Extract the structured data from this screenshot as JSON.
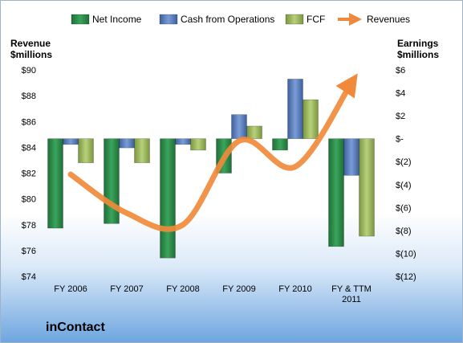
{
  "company": "inContact",
  "chart_data": {
    "type": "bar",
    "categories": [
      "FY 2006",
      "FY 2007",
      "FY 2008",
      "FY 2009",
      "FY 2010",
      "FY & TTM 2011"
    ],
    "left_axis": {
      "title_line1": "Revenue",
      "title_line2": "$millions",
      "ylim": [
        74,
        90
      ],
      "ticks": [
        74,
        76,
        78,
        80,
        82,
        84,
        86,
        88,
        90
      ],
      "tick_labels": [
        "$74",
        "$76",
        "$78",
        "$80",
        "$82",
        "$84",
        "$86",
        "$88",
        "$90"
      ]
    },
    "right_axis": {
      "title_line1": "Earnings",
      "title_line2": "$millions",
      "ylim": [
        -12,
        6
      ],
      "ticks": [
        6,
        4,
        2,
        0,
        -2,
        -4,
        -6,
        -8,
        -10,
        -12
      ],
      "tick_labels": [
        "$6",
        "$4",
        "$2",
        "$-",
        "$(2)",
        "$(4)",
        "$(6)",
        "$(8)",
        "$(10)",
        "$(12)"
      ]
    },
    "bar_series": [
      {
        "name": "Net Income",
        "color": "#2e8b4a",
        "values": [
          -7.8,
          -7.4,
          -10.4,
          -3.0,
          -1.0,
          -9.4
        ]
      },
      {
        "name": "Cash from Operations",
        "color": "#5b7fc0",
        "values": [
          -0.5,
          -0.8,
          -0.5,
          2.1,
          5.2,
          -3.2
        ]
      },
      {
        "name": "FCF",
        "color": "#9bbb59",
        "values": [
          -2.1,
          -2.1,
          -1.0,
          1.1,
          3.4,
          -8.5
        ]
      }
    ],
    "line_series": {
      "name": "Revenues",
      "color": "#f08a3a",
      "axis": "left",
      "values": [
        81.9,
        78.9,
        78.0,
        84.5,
        82.5,
        89.0
      ]
    },
    "legend_position": "top",
    "grid": false
  }
}
